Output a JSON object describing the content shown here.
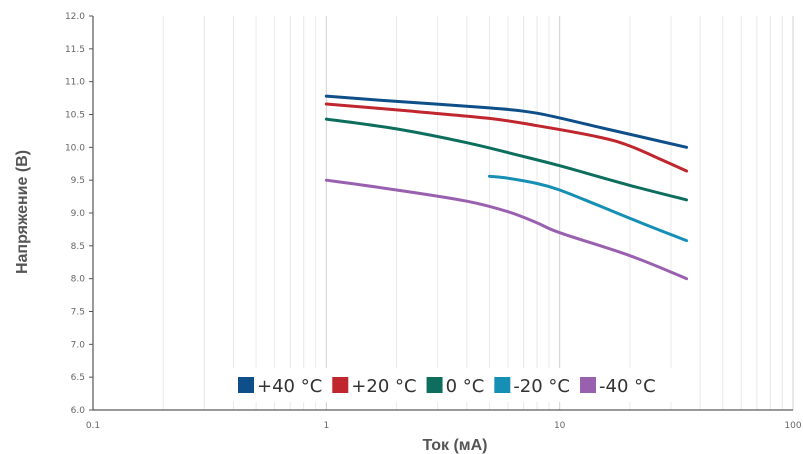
{
  "chart_data": {
    "type": "line",
    "xlabel": "Ток (мА)",
    "ylabel": "Напряжение (В)",
    "xscale": "log",
    "xlim": [
      0.1,
      100
    ],
    "ylim": [
      6.0,
      12.0
    ],
    "x_ticks": [
      "0.1",
      "1",
      "10",
      "100"
    ],
    "y_ticks": [
      "6.0",
      "6.5",
      "7.0",
      "7.5",
      "8.0",
      "8.5",
      "9.0",
      "9.5",
      "10.0",
      "10.5",
      "11.0",
      "11.5",
      "12.0"
    ],
    "grid": true,
    "legend_position": "bottom-center",
    "series": [
      {
        "name": "+40 °C",
        "color": "#0e4f8a",
        "x": [
          1,
          2,
          5,
          8,
          15,
          25,
          35
        ],
        "y": [
          10.78,
          10.7,
          10.6,
          10.52,
          10.3,
          10.12,
          10.0
        ]
      },
      {
        "name": "+20 °C",
        "color": "#c0262e",
        "x": [
          1,
          2,
          5,
          8,
          15,
          20,
          27,
          35
        ],
        "y": [
          10.66,
          10.57,
          10.44,
          10.33,
          10.15,
          10.02,
          9.82,
          9.64
        ]
      },
      {
        "name": "0 °C",
        "color": "#0e6e5e",
        "x": [
          1,
          2,
          4,
          7,
          10,
          20,
          35
        ],
        "y": [
          10.43,
          10.28,
          10.07,
          9.86,
          9.72,
          9.42,
          9.2
        ]
      },
      {
        "name": "-20 °C",
        "color": "#168fb5",
        "x": [
          5,
          6,
          8,
          10,
          15,
          25,
          35
        ],
        "y": [
          9.56,
          9.53,
          9.45,
          9.35,
          9.1,
          8.78,
          8.58
        ]
      },
      {
        "name": "-40 °C",
        "color": "#9a60b0",
        "x": [
          1,
          2,
          4,
          6,
          8,
          10,
          20,
          35
        ],
        "y": [
          9.5,
          9.35,
          9.18,
          9.02,
          8.85,
          8.7,
          8.35,
          8.0
        ]
      }
    ]
  }
}
